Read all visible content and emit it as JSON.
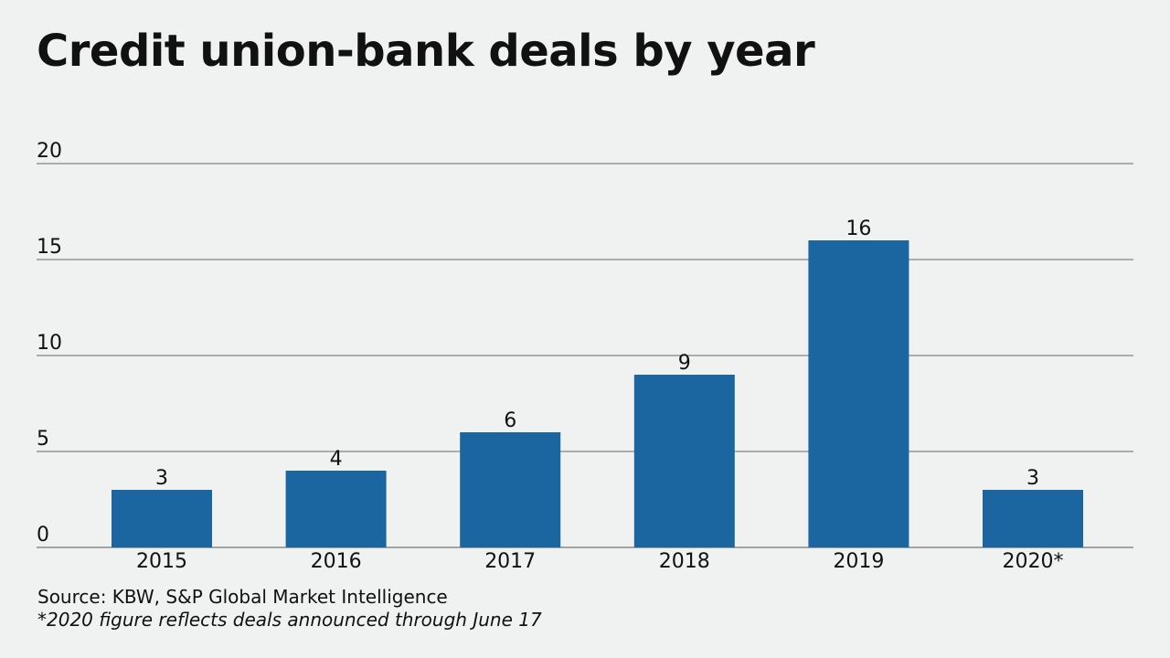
{
  "chart_data": {
    "type": "bar",
    "title": "Credit union-bank deals by year",
    "categories": [
      "2015",
      "2016",
      "2017",
      "2018",
      "2019",
      "2020*"
    ],
    "values": [
      3,
      4,
      6,
      9,
      16,
      3
    ],
    "ylim": [
      0,
      20
    ],
    "yticks": [
      0,
      5,
      10,
      15,
      20
    ],
    "xlabel": "",
    "ylabel": "",
    "grid": true,
    "bar_color": "#1b66a0",
    "source": "Source: KBW, S&P Global Market Intelligence",
    "note": "*2020 figure reflects deals announced through June 17"
  }
}
